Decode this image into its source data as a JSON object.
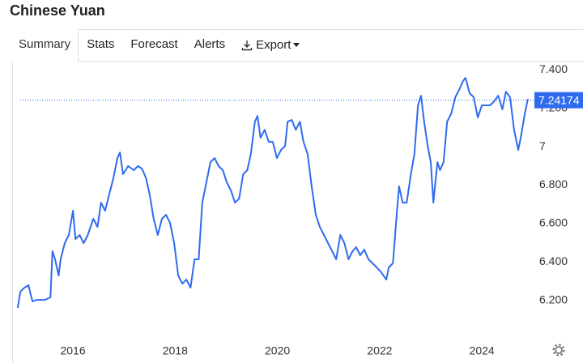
{
  "header": {
    "title": "Chinese Yuan"
  },
  "tabs": [
    "Summary",
    "Stats",
    "Forecast",
    "Alerts",
    "Export"
  ],
  "chart_data": {
    "type": "line",
    "color": "#2f6bed",
    "x": [
      2014.92,
      2014.97,
      2015.05,
      2015.13,
      2015.18,
      2015.21,
      2015.29,
      2015.45,
      2015.56,
      2015.6,
      2015.65,
      2015.72,
      2015.76,
      2015.84,
      2015.92,
      2016.0,
      2016.05,
      2016.13,
      2016.21,
      2016.29,
      2016.4,
      2016.48,
      2016.55,
      2016.63,
      2016.71,
      2016.79,
      2016.87,
      2016.92,
      2016.98,
      2017.08,
      2017.19,
      2017.27,
      2017.35,
      2017.43,
      2017.5,
      2017.58,
      2017.66,
      2017.74,
      2017.82,
      2017.9,
      2017.98,
      2018.06,
      2018.14,
      2018.22,
      2018.3,
      2018.38,
      2018.46,
      2018.53,
      2018.61,
      2018.69,
      2018.77,
      2018.85,
      2018.93,
      2019.01,
      2019.09,
      2019.17,
      2019.25,
      2019.33,
      2019.41,
      2019.48,
      2019.56,
      2019.61,
      2019.67,
      2019.75,
      2019.83,
      2019.91,
      2019.99,
      2020.07,
      2020.15,
      2020.2,
      2020.28,
      2020.36,
      2020.44,
      2020.51,
      2020.59,
      2020.67,
      2020.75,
      2020.83,
      2020.91,
      2020.99,
      2021.07,
      2021.15,
      2021.23,
      2021.31,
      2021.39,
      2021.47,
      2021.54,
      2021.62,
      2021.7,
      2021.78,
      2021.86,
      2021.94,
      2022.02,
      2022.13,
      2022.18,
      2022.26,
      2022.34,
      2022.38,
      2022.45,
      2022.53,
      2022.61,
      2022.68,
      2022.75,
      2022.81,
      2022.87,
      2022.94,
      2023.0,
      2023.05,
      2023.13,
      2023.18,
      2023.25,
      2023.32,
      2023.4,
      2023.48,
      2023.56,
      2023.63,
      2023.68,
      2023.76,
      2023.84,
      2023.92,
      2024.0,
      2024.08,
      2024.16,
      2024.24,
      2024.32,
      2024.4,
      2024.47,
      2024.55,
      2024.63,
      2024.71,
      2024.76,
      2024.84,
      2024.9
    ],
    "values": [
      6.162,
      6.246,
      6.267,
      6.28,
      6.225,
      6.196,
      6.204,
      6.204,
      6.217,
      6.457,
      6.415,
      6.33,
      6.415,
      6.499,
      6.541,
      6.667,
      6.52,
      6.541,
      6.499,
      6.541,
      6.625,
      6.583,
      6.709,
      6.667,
      6.752,
      6.836,
      6.941,
      6.97,
      6.857,
      6.899,
      6.878,
      6.899,
      6.886,
      6.836,
      6.752,
      6.625,
      6.541,
      6.625,
      6.646,
      6.604,
      6.499,
      6.33,
      6.288,
      6.309,
      6.267,
      6.415,
      6.415,
      6.709,
      6.815,
      6.92,
      6.941,
      6.899,
      6.878,
      6.815,
      6.773,
      6.709,
      6.73,
      6.857,
      6.878,
      6.962,
      7.13,
      7.16,
      7.046,
      7.088,
      7.025,
      7.025,
      6.941,
      6.983,
      7.004,
      7.13,
      7.139,
      7.088,
      7.13,
      7.025,
      6.962,
      6.794,
      6.646,
      6.583,
      6.541,
      6.499,
      6.457,
      6.415,
      6.541,
      6.499,
      6.415,
      6.457,
      6.478,
      6.436,
      6.465,
      6.415,
      6.394,
      6.373,
      6.351,
      6.309,
      6.373,
      6.394,
      6.667,
      6.794,
      6.709,
      6.709,
      6.857,
      6.962,
      7.215,
      7.265,
      7.13,
      7.004,
      6.92,
      6.709,
      6.92,
      6.878,
      6.92,
      7.13,
      7.173,
      7.257,
      7.299,
      7.341,
      7.358,
      7.278,
      7.257,
      7.152,
      7.215,
      7.215,
      7.215,
      7.236,
      7.265,
      7.194,
      7.286,
      7.257,
      7.088,
      6.983,
      7.046,
      7.173,
      7.248
    ],
    "current_value": 7.24174,
    "xlim": [
      2014.89,
      2024.98
    ],
    "xticks": [
      2016,
      2018,
      2020,
      2022,
      2024
    ],
    "ylim": [
      6.0,
      7.434
    ],
    "yticks": [
      {
        "value": 6.2,
        "label": "6.200"
      },
      {
        "value": 6.4,
        "label": "6.400"
      },
      {
        "value": 6.6,
        "label": "6.600"
      },
      {
        "value": 6.8,
        "label": "6.800"
      },
      7,
      {
        "value": 7.2,
        "label": "7.200"
      },
      {
        "value": 7.4,
        "label": "7.400"
      }
    ]
  }
}
